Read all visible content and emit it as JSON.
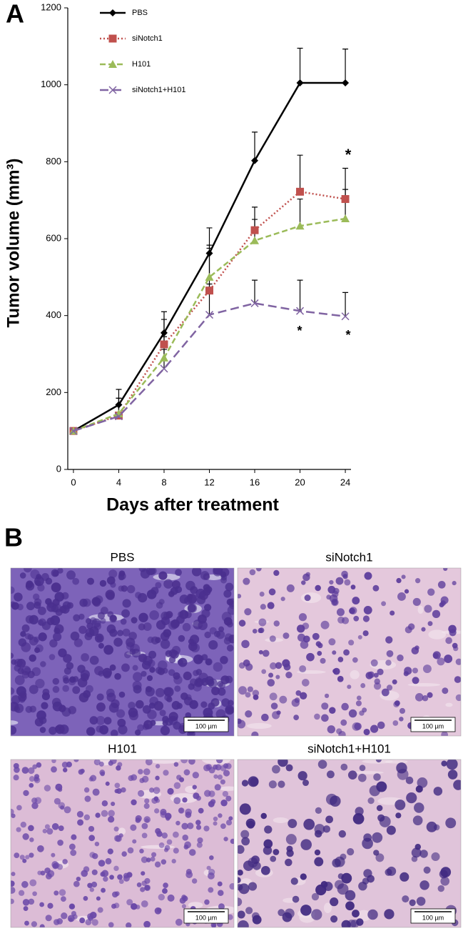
{
  "chart_data": {
    "type": "line",
    "y_label": "Tumor volume (mm³)",
    "x_label": "Days after treatment",
    "x": [
      0,
      4,
      8,
      12,
      16,
      20,
      24
    ],
    "xlim": [
      -0.5,
      24.5
    ],
    "xticks": [
      0,
      4,
      8,
      12,
      16,
      20,
      24
    ],
    "ylim": [
      0,
      1200
    ],
    "yticks": [
      0,
      200,
      400,
      600,
      800,
      1000,
      1200
    ],
    "legend": "top-left",
    "series": [
      {
        "name": "PBS",
        "color": "#000000",
        "marker": "diamond",
        "dash": "solid",
        "values": [
          100,
          168,
          355,
          562,
          803,
          1005,
          1005
        ],
        "errors": [
          0,
          40,
          55,
          66,
          74,
          90,
          88
        ]
      },
      {
        "name": "siNotch1",
        "color": "#c0504d",
        "marker": "square",
        "dash": "dotted",
        "values": [
          100,
          140,
          325,
          465,
          622,
          722,
          703
        ],
        "errors": [
          0,
          45,
          65,
          118,
          60,
          95,
          80
        ]
      },
      {
        "name": "H101",
        "color": "#9bbb59",
        "marker": "triangle",
        "dash": "dashed",
        "values": [
          100,
          145,
          290,
          500,
          595,
          633,
          652
        ],
        "errors": [
          0,
          40,
          55,
          75,
          55,
          70,
          76
        ]
      },
      {
        "name": "siNotch1+H101",
        "color": "#8064a2",
        "marker": "x",
        "dash": "longdash",
        "values": [
          100,
          138,
          262,
          402,
          432,
          412,
          398
        ],
        "errors": [
          0,
          30,
          50,
          80,
          60,
          80,
          62
        ]
      }
    ],
    "annotations": [
      "*",
      "*",
      "*"
    ]
  },
  "panel_labels": [
    "A",
    "B"
  ],
  "panel_b": {
    "images": [
      {
        "title": "PBS",
        "scale_bar": "100 µm"
      },
      {
        "title": "siNotch1",
        "scale_bar": "100 µm"
      },
      {
        "title": "H101",
        "scale_bar": "100 µm"
      },
      {
        "title": "siNotch1+H101",
        "scale_bar": "100 µm"
      }
    ]
  }
}
